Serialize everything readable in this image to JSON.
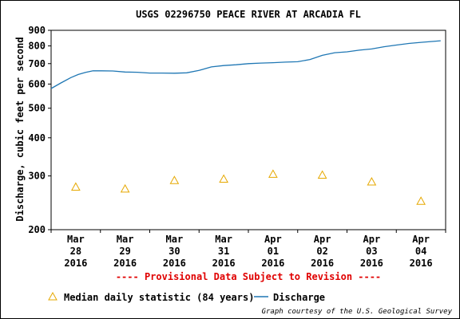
{
  "chart_data": {
    "type": "line",
    "title": "USGS 02296750 PEACE RIVER AT ARCADIA FL",
    "ylabel": "Discharge, cubic feet per second",
    "xlabel": "",
    "y_scale": "log",
    "ylim": [
      200,
      900
    ],
    "y_ticks": [
      "900",
      "800",
      "700",
      "600",
      "500",
      "400",
      "300",
      "200"
    ],
    "y_tick_values": [
      900,
      800,
      700,
      600,
      500,
      400,
      300,
      200
    ],
    "x_range": [
      0,
      8
    ],
    "x_ticks": [
      {
        "month": "Mar",
        "day": "28",
        "year": "2016"
      },
      {
        "month": "Mar",
        "day": "29",
        "year": "2016"
      },
      {
        "month": "Mar",
        "day": "30",
        "year": "2016"
      },
      {
        "month": "Mar",
        "day": "31",
        "year": "2016"
      },
      {
        "month": "Apr",
        "day": "01",
        "year": "2016"
      },
      {
        "month": "Apr",
        "day": "02",
        "year": "2016"
      },
      {
        "month": "Apr",
        "day": "03",
        "year": "2016"
      },
      {
        "month": "Apr",
        "day": "04",
        "year": "2016"
      }
    ],
    "grid": false,
    "legend_placement": "bottom",
    "series": [
      {
        "name": "Discharge",
        "color": "#1f77b4",
        "x": [
          0,
          0.2,
          0.4,
          0.55,
          0.7,
          0.85,
          1.0,
          1.25,
          1.5,
          1.75,
          2.0,
          2.25,
          2.5,
          2.75,
          3.0,
          3.25,
          3.5,
          3.75,
          4.0,
          4.25,
          4.5,
          4.75,
          5.0,
          5.25,
          5.5,
          5.75,
          6.0,
          6.25,
          6.5,
          6.75,
          7.0,
          7.25,
          7.5,
          7.75,
          7.9
        ],
        "y": [
          580,
          605,
          630,
          645,
          655,
          663,
          663,
          662,
          657,
          656,
          652,
          652,
          651,
          653,
          665,
          683,
          690,
          694,
          700,
          703,
          705,
          708,
          710,
          722,
          745,
          760,
          765,
          775,
          782,
          795,
          805,
          815,
          822,
          828,
          832
        ]
      },
      {
        "name": "Median daily statistic (84 years)",
        "color": "#e6a800",
        "marker": "triangle",
        "x": [
          0.5,
          1.5,
          2.5,
          3.5,
          4.5,
          5.5,
          6.5,
          7.5
        ],
        "y": [
          276,
          272,
          290,
          293,
          304,
          302,
          287,
          248
        ]
      }
    ],
    "annotations": {
      "provisional": "---- Provisional Data Subject to Revision ----",
      "credit": "Graph courtesy of the U.S. Geological Survey"
    }
  }
}
